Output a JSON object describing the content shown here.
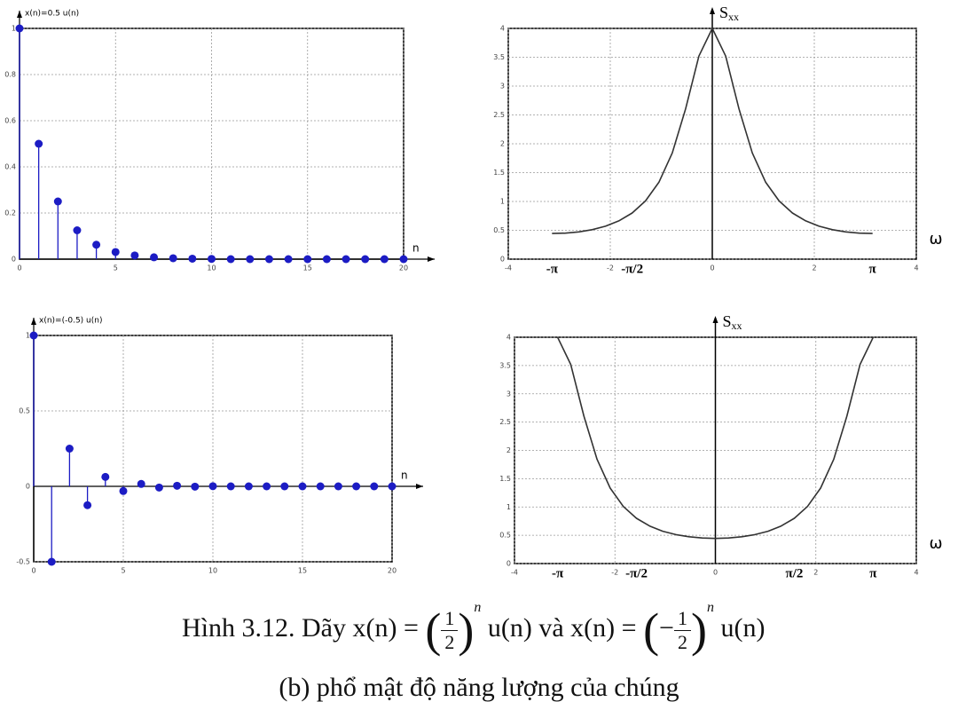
{
  "chart_data": [
    {
      "type": "stem",
      "title": "x(n)=0.5 u(n)",
      "x_label": "n",
      "color": "#1c1cc4",
      "x": [
        0,
        1,
        2,
        3,
        4,
        5,
        6,
        7,
        8,
        9,
        10,
        11,
        12,
        13,
        14,
        15,
        16,
        17,
        18,
        19,
        20
      ],
      "values": [
        1,
        0.5,
        0.25,
        0.125,
        0.0625,
        0.031,
        0.016,
        0.008,
        0.004,
        0.002,
        0.001,
        0,
        0,
        0,
        0,
        0,
        0,
        0,
        0,
        0,
        0
      ],
      "xlim": [
        0,
        20
      ],
      "xticks": [
        0,
        5,
        10,
        15,
        20
      ],
      "ylim": [
        0,
        1
      ],
      "yticks": [
        0,
        0.2,
        0.4,
        0.6,
        0.8,
        1
      ],
      "grid": true
    },
    {
      "type": "line",
      "y_label": {
        "main": "S",
        "sub": "xx"
      },
      "x_label": "ω",
      "color": "#333333",
      "x": [
        -3.142,
        -2.88,
        -2.618,
        -2.356,
        -2.094,
        -1.833,
        -1.571,
        -1.309,
        -1.047,
        -0.785,
        -0.524,
        -0.262,
        0,
        0.262,
        0.524,
        0.785,
        1.047,
        1.309,
        1.571,
        1.833,
        2.094,
        2.356,
        2.618,
        2.88,
        3.142
      ],
      "values": [
        0.444,
        0.451,
        0.473,
        0.511,
        0.571,
        0.663,
        0.8,
        1.009,
        1.333,
        1.842,
        2.604,
        3.52,
        4,
        3.52,
        2.604,
        1.842,
        1.333,
        1.009,
        0.8,
        0.663,
        0.571,
        0.511,
        0.473,
        0.451,
        0.444
      ],
      "xlim": [
        -4,
        4
      ],
      "xticks": [
        -4,
        -2,
        0,
        2,
        4
      ],
      "ylim": [
        0,
        4
      ],
      "yticks": [
        0,
        0.5,
        1,
        1.5,
        2,
        2.5,
        3,
        3.5,
        4
      ],
      "grid": true,
      "x_annotations": [
        {
          "value": -3.142,
          "label": "-π"
        },
        {
          "value": -1.571,
          "label": "-π/2"
        },
        {
          "value": 3.142,
          "label": "π"
        }
      ]
    },
    {
      "type": "stem",
      "title": "x(n)=(-0.5) u(n)",
      "x_label": "n",
      "color": "#1c1cc4",
      "x": [
        0,
        1,
        2,
        3,
        4,
        5,
        6,
        7,
        8,
        9,
        10,
        11,
        12,
        13,
        14,
        15,
        16,
        17,
        18,
        19,
        20
      ],
      "values": [
        1,
        -0.5,
        0.25,
        -0.125,
        0.0625,
        -0.031,
        0.016,
        -0.008,
        0.004,
        -0.002,
        0.001,
        0,
        0,
        0,
        0,
        0,
        0,
        0,
        0,
        0,
        0
      ],
      "xlim": [
        0,
        20
      ],
      "xticks": [
        0,
        5,
        10,
        15,
        20
      ],
      "ylim": [
        -0.5,
        1
      ],
      "yticks": [
        -0.5,
        0,
        0.5,
        1
      ],
      "grid": true
    },
    {
      "type": "line",
      "y_label": {
        "main": "S",
        "sub": "xx"
      },
      "x_label": "ω",
      "color": "#333333",
      "x": [
        -3.142,
        -2.88,
        -2.618,
        -2.356,
        -2.094,
        -1.833,
        -1.571,
        -1.309,
        -1.047,
        -0.785,
        -0.524,
        -0.262,
        0,
        0.262,
        0.524,
        0.785,
        1.047,
        1.309,
        1.571,
        1.833,
        2.094,
        2.356,
        2.618,
        2.88,
        3.142
      ],
      "values": [
        4,
        3.52,
        2.604,
        1.842,
        1.333,
        1.009,
        0.8,
        0.663,
        0.571,
        0.511,
        0.473,
        0.451,
        0.444,
        0.451,
        0.473,
        0.511,
        0.571,
        0.663,
        0.8,
        1.009,
        1.333,
        1.842,
        2.604,
        3.52,
        4
      ],
      "xlim": [
        -4,
        4
      ],
      "xticks": [
        -4,
        -2,
        0,
        2,
        4
      ],
      "ylim": [
        0,
        4
      ],
      "yticks": [
        0,
        0.5,
        1,
        1.5,
        2,
        2.5,
        3,
        3.5,
        4
      ],
      "grid": true,
      "x_annotations": [
        {
          "value": -3.142,
          "label": "-π"
        },
        {
          "value": -1.571,
          "label": "-π/2"
        },
        {
          "value": 1.571,
          "label": "π/2"
        },
        {
          "value": 3.142,
          "label": "π"
        }
      ]
    }
  ],
  "caption": {
    "line1": {
      "prefix": "Hình 3.12. Dãy x(n) = ",
      "num1": "1",
      "den1": "2",
      "exp1": "n",
      "middle": " u(n) và  x(n) = ",
      "sign2": "−",
      "num2": "1",
      "den2": "2",
      "exp2": "n",
      "suffix": " u(n)"
    },
    "line2": "(b) phổ mật độ năng lượng của chúng"
  }
}
